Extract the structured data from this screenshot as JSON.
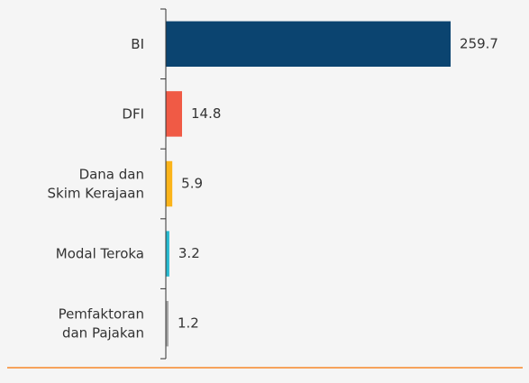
{
  "chart_data": {
    "type": "barh",
    "categories": [
      [
        "BI"
      ],
      [
        "DFI"
      ],
      [
        "Dana dan",
        "Skim Kerajaan"
      ],
      [
        "Modal Teroka"
      ],
      [
        "Pemfaktoran",
        "dan Pajakan"
      ]
    ],
    "values": [
      259.7,
      14.8,
      5.9,
      3.2,
      1.2
    ],
    "colors": [
      "#0b4470",
      "#f05a45",
      "#fbb41a",
      "#27b9cf",
      "#a6a6a6"
    ],
    "xlim": [
      0,
      260
    ]
  }
}
